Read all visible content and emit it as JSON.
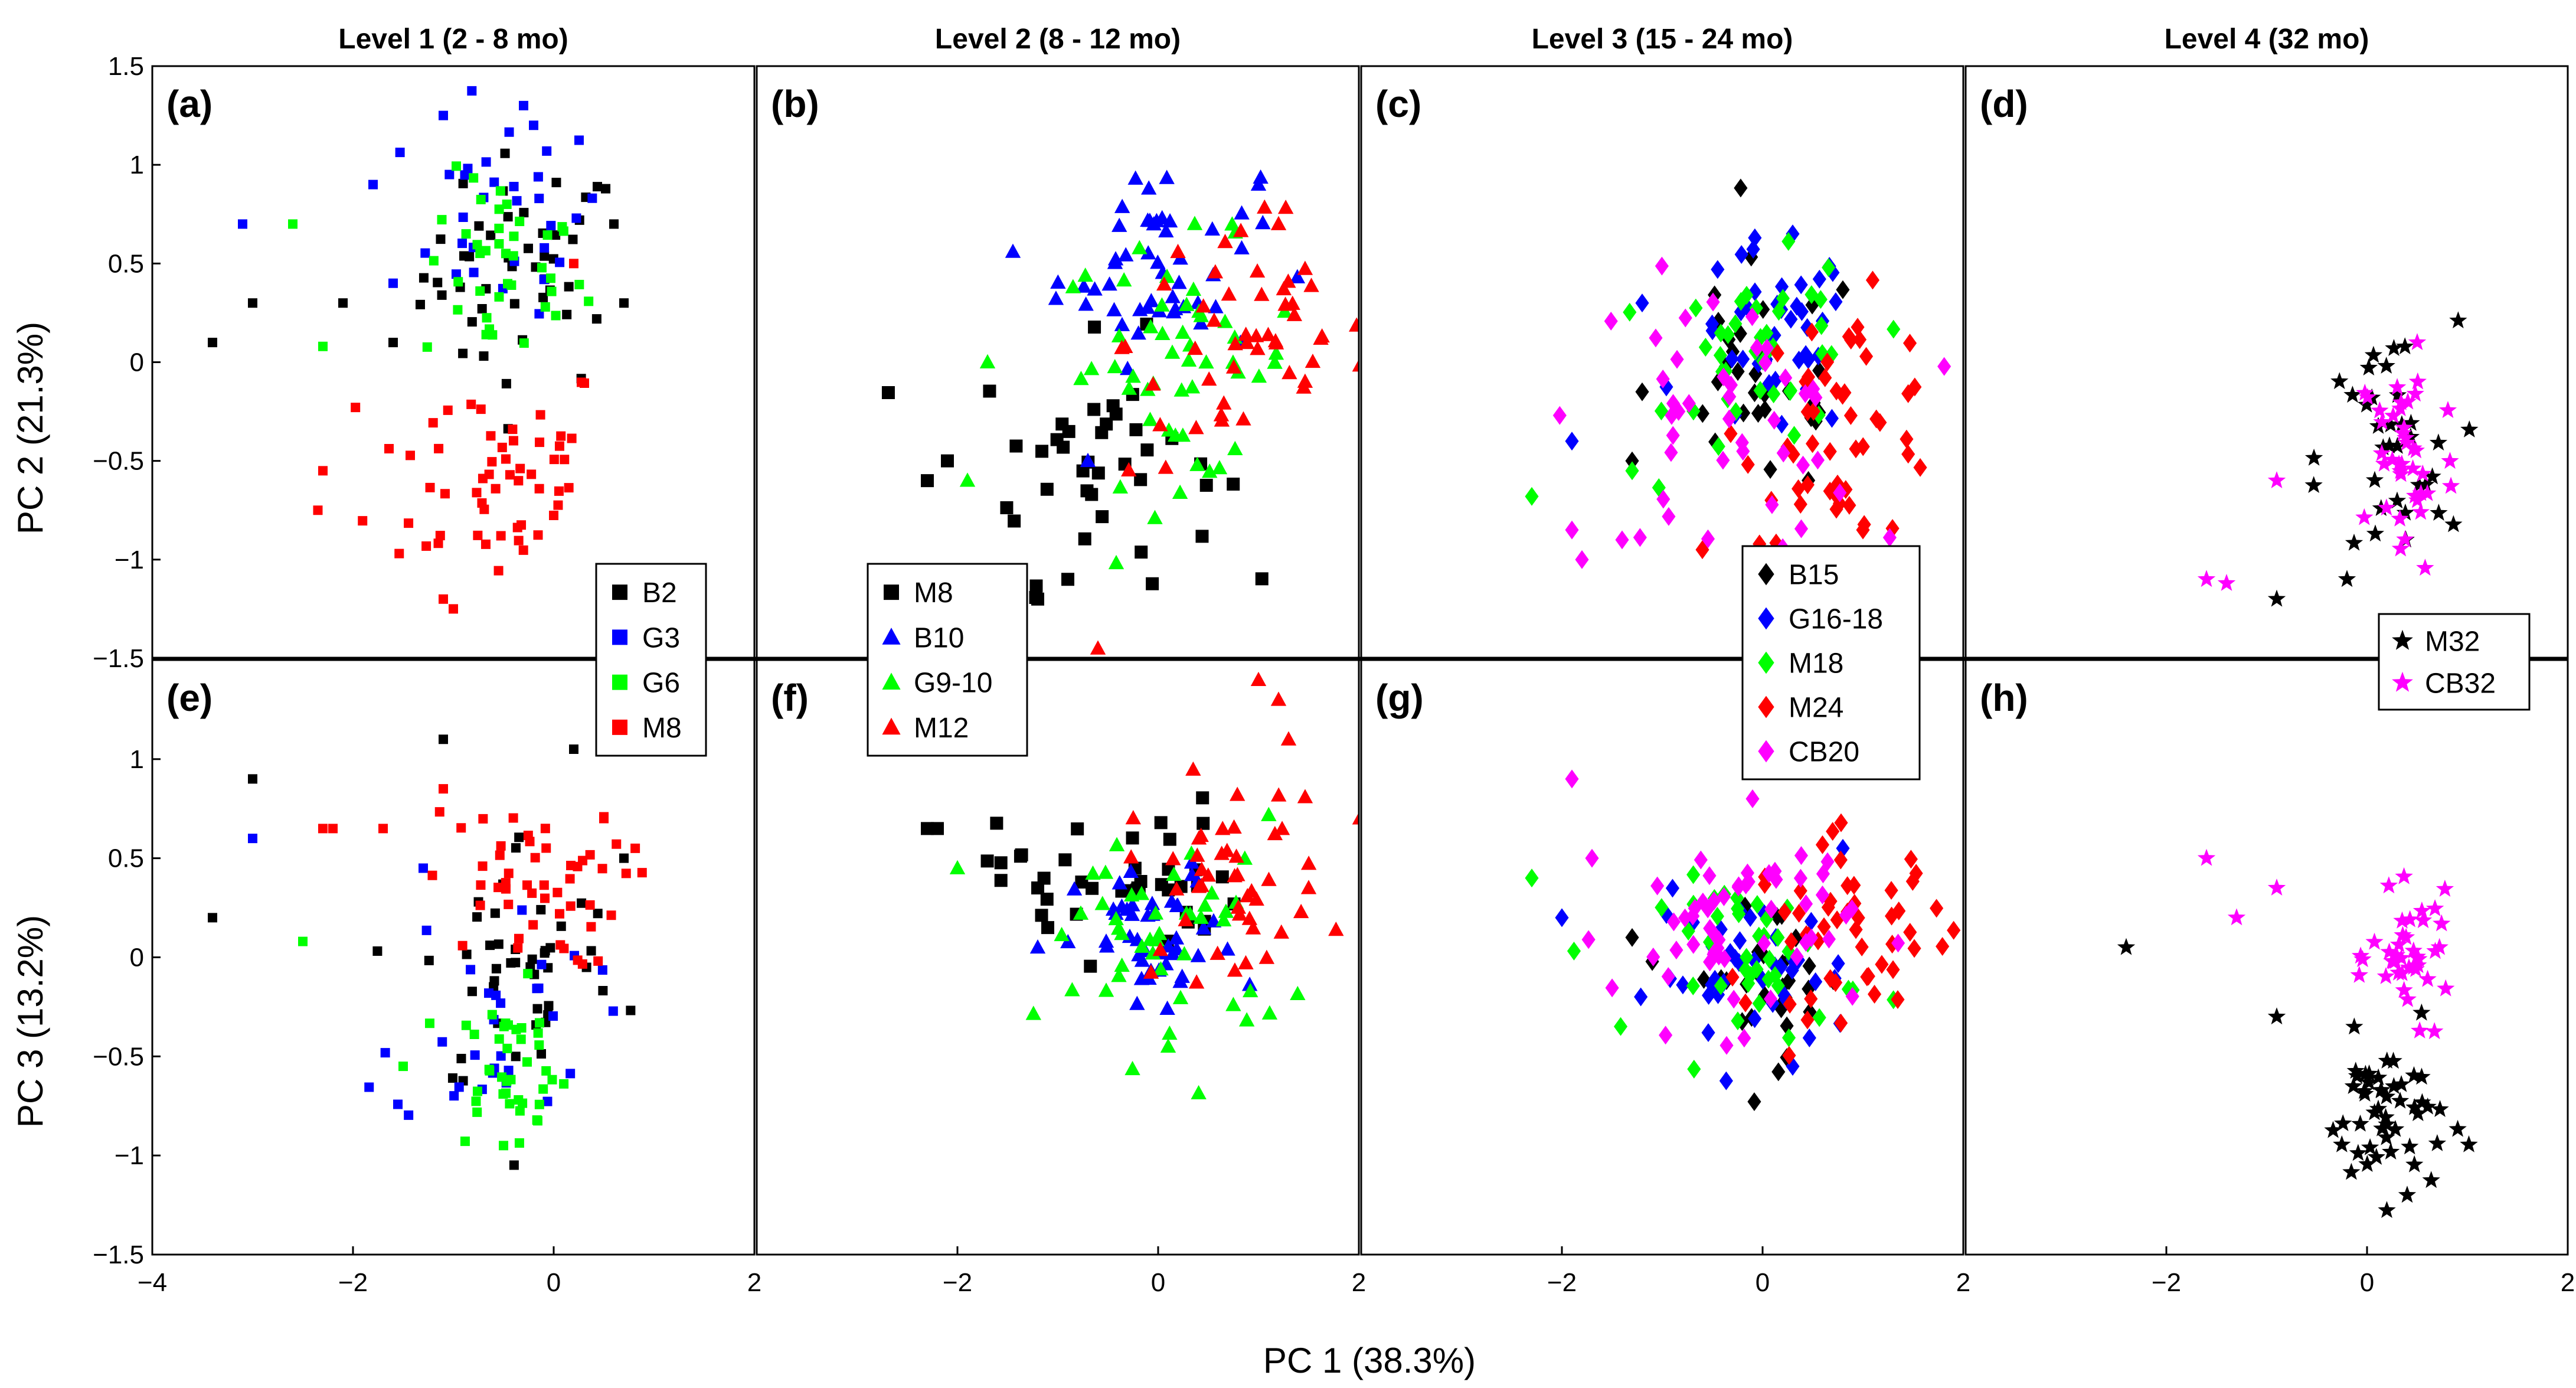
{
  "figure": {
    "xlabel": "PC 1 (38.3%)",
    "ylabel_top": "PC 2 (21.3%)",
    "ylabel_bottom": "PC 3 (13.2%)"
  },
  "chart_data": {
    "type": "scatter",
    "grid": false,
    "xlim": [
      -4,
      2
    ],
    "x_ticks": [
      -4,
      -2,
      0,
      2
    ],
    "rows": [
      {
        "ylabel": "PC 2 (21.3%)",
        "ylim": [
          -1.5,
          1.5
        ],
        "y_ticks": [
          -1.5,
          -1,
          -0.5,
          0,
          0.5,
          1,
          1.5
        ]
      },
      {
        "ylabel": "PC 3 (13.2%)",
        "ylim": [
          -1.5,
          1.5
        ],
        "y_ticks": [
          -1.5,
          -1,
          -0.5,
          0,
          0.5,
          1
        ]
      }
    ],
    "levels": [
      {
        "title": "Level 1 (2 - 8 mo)",
        "marker": "square",
        "legend_position": "bottom-right of top panel",
        "series": [
          {
            "name": "B2",
            "color": "#000000"
          },
          {
            "name": "G3",
            "color": "#0000ff"
          },
          {
            "name": "G6",
            "color": "#00ff00"
          },
          {
            "name": "M8",
            "color": "#ff0000"
          }
        ]
      },
      {
        "title": "Level 2 (8 - 12 mo)",
        "marker": "triangle",
        "legend_position": "bottom-left of top panel",
        "series": [
          {
            "name": "M8",
            "color": "#000000",
            "marker": "square"
          },
          {
            "name": "B10",
            "color": "#0000ff"
          },
          {
            "name": "G9-10",
            "color": "#00ff00"
          },
          {
            "name": "M12",
            "color": "#ff0000"
          }
        ]
      },
      {
        "title": "Level 3 (15 - 24 mo)",
        "marker": "diamond",
        "legend_position": "bottom-right of top panel",
        "series": [
          {
            "name": "B15",
            "color": "#000000"
          },
          {
            "name": "G16-18",
            "color": "#0000ff"
          },
          {
            "name": "M18",
            "color": "#00ff00"
          },
          {
            "name": "M24",
            "color": "#ff0000"
          },
          {
            "name": "CB20",
            "color": "#ff00ff"
          }
        ]
      },
      {
        "title": "Level 4 (32 mo)",
        "marker": "star",
        "legend_position": "bottom-right of top panel",
        "series": [
          {
            "name": "M32",
            "color": "#000000"
          },
          {
            "name": "CB32",
            "color": "#ff00ff"
          }
        ]
      }
    ],
    "panels": [
      {
        "label": "(a)",
        "level": 0,
        "row": 0,
        "groups": [
          {
            "series": 0,
            "cx": -0.3,
            "cy": 0.45,
            "sx": 0.5,
            "sy": 0.3,
            "n": 45,
            "extra": [
              [
                -3.4,
                0.1
              ],
              [
                -3.0,
                0.3
              ],
              [
                -2.1,
                0.3
              ],
              [
                -1.6,
                0.1
              ],
              [
                0.7,
                0.3
              ],
              [
                0.6,
                0.7
              ]
            ]
          },
          {
            "series": 1,
            "cx": -0.5,
            "cy": 0.75,
            "sx": 0.5,
            "sy": 0.25,
            "n": 30,
            "extra": [
              [
                -3.1,
                0.7
              ],
              [
                -2.6,
                0.7
              ],
              [
                -1.8,
                0.9
              ],
              [
                -1.6,
                0.4
              ],
              [
                -0.3,
                1.3
              ],
              [
                -0.2,
                1.2
              ],
              [
                -1.1,
                1.25
              ]
            ]
          },
          {
            "series": 2,
            "cx": -0.5,
            "cy": 0.45,
            "sx": 0.4,
            "sy": 0.25,
            "n": 40,
            "extra": [
              [
                -2.6,
                0.7
              ],
              [
                -2.3,
                0.08
              ]
            ]
          },
          {
            "series": 3,
            "cx": -0.6,
            "cy": -0.55,
            "sx": 0.6,
            "sy": 0.3,
            "n": 55,
            "extra": [
              [
                -2.3,
                -0.55
              ],
              [
                -2.35,
                -0.75
              ],
              [
                -1.1,
                -1.2
              ],
              [
                -1.0,
                -1.25
              ],
              [
                0.2,
                0.5
              ]
            ]
          }
        ]
      },
      {
        "label": "(b)",
        "level": 1,
        "row": 0,
        "groups": [
          {
            "series": 0,
            "cx": -0.6,
            "cy": -0.5,
            "sx": 0.6,
            "sy": 0.3,
            "n": 40,
            "marker": "square",
            "extra": [
              [
                -2.3,
                -0.6
              ],
              [
                -2.1,
                -0.5
              ],
              [
                -1.2,
                -1.2
              ],
              [
                -0.9,
                -1.1
              ]
            ]
          },
          {
            "series": 1,
            "cx": 0.0,
            "cy": 0.5,
            "sx": 0.5,
            "sy": 0.25,
            "n": 50,
            "extra": [
              [
                1.0,
                0.9
              ],
              [
                -0.7,
                -0.5
              ]
            ]
          },
          {
            "series": 2,
            "cx": 0.2,
            "cy": 0.0,
            "sx": 0.6,
            "sy": 0.3,
            "n": 50,
            "extra": [
              [
                -1.7,
                0.0
              ],
              [
                -1.9,
                -0.6
              ]
            ]
          },
          {
            "series": 3,
            "cx": 0.9,
            "cy": 0.1,
            "sx": 0.6,
            "sy": 0.35,
            "n": 50,
            "extra": [
              [
                -0.6,
                -1.45
              ],
              [
                1.2,
                0.7
              ]
            ]
          }
        ]
      },
      {
        "label": "(c)",
        "level": 2,
        "row": 0,
        "groups": [
          {
            "series": 0,
            "cx": 0.0,
            "cy": -0.1,
            "sx": 0.5,
            "sy": 0.3,
            "n": 30,
            "extra": [
              [
                -1.3,
                -0.5
              ],
              [
                -1.2,
                -0.15
              ]
            ]
          },
          {
            "series": 1,
            "cx": 0.1,
            "cy": 0.1,
            "sx": 0.4,
            "sy": 0.25,
            "n": 40,
            "extra": [
              [
                -1.9,
                -0.4
              ],
              [
                -1.2,
                0.3
              ],
              [
                0.3,
                0.65
              ]
            ]
          },
          {
            "series": 2,
            "cx": 0.1,
            "cy": 0.0,
            "sx": 0.5,
            "sy": 0.25,
            "n": 40,
            "extra": [
              [
                -2.3,
                -0.68
              ],
              [
                -1.3,
                -0.55
              ]
            ]
          },
          {
            "series": 3,
            "cx": 0.8,
            "cy": -0.3,
            "sx": 0.5,
            "sy": 0.3,
            "n": 50,
            "extra": [
              [
                -0.6,
                -0.95
              ],
              [
                1.0,
                -0.85
              ]
            ]
          },
          {
            "series": 4,
            "cx": -0.4,
            "cy": -0.3,
            "sx": 0.7,
            "sy": 0.35,
            "n": 45,
            "extra": [
              [
                -1.9,
                -0.85
              ],
              [
                -1.8,
                -1.0
              ],
              [
                -1.4,
                -0.9
              ]
            ]
          }
        ]
      },
      {
        "label": "(d)",
        "level": 3,
        "row": 0,
        "groups": [
          {
            "series": 0,
            "cx": 0.2,
            "cy": -0.5,
            "sx": 0.35,
            "sy": 0.35,
            "n": 35,
            "extra": [
              [
                -0.9,
                -1.2
              ],
              [
                -0.2,
                -1.1
              ]
            ]
          },
          {
            "series": 1,
            "cx": 0.4,
            "cy": -0.5,
            "sx": 0.25,
            "sy": 0.3,
            "n": 40,
            "extra": [
              [
                -1.6,
                -1.1
              ],
              [
                -1.4,
                -1.12
              ],
              [
                -0.9,
                -0.6
              ],
              [
                0.5,
                0.1
              ]
            ]
          }
        ]
      },
      {
        "label": "(e)",
        "level": 0,
        "row": 1,
        "groups": [
          {
            "series": 0,
            "cx": -0.3,
            "cy": -0.05,
            "sx": 0.5,
            "sy": 0.35,
            "n": 45,
            "extra": [
              [
                -3.4,
                0.2
              ],
              [
                -3.0,
                0.9
              ],
              [
                -1.1,
                1.1
              ],
              [
                0.2,
                1.05
              ],
              [
                0.7,
                0.5
              ]
            ]
          },
          {
            "series": 1,
            "cx": -0.6,
            "cy": -0.3,
            "sx": 0.5,
            "sy": 0.3,
            "n": 30,
            "extra": [
              [
                -3.0,
                0.6
              ],
              [
                -1.3,
                0.45
              ]
            ]
          },
          {
            "series": 2,
            "cx": -0.45,
            "cy": -0.55,
            "sx": 0.3,
            "sy": 0.2,
            "n": 40,
            "extra": [
              [
                -2.5,
                0.08
              ],
              [
                -1.5,
                -0.55
              ],
              [
                -0.5,
                -0.95
              ]
            ]
          },
          {
            "series": 3,
            "cx": -0.3,
            "cy": 0.35,
            "sx": 0.5,
            "sy": 0.2,
            "n": 50,
            "extra": [
              [
                -2.3,
                0.65
              ],
              [
                -2.2,
                0.65
              ],
              [
                -1.7,
                0.65
              ],
              [
                -1.1,
                0.85
              ],
              [
                0.5,
                0.7
              ]
            ]
          }
        ]
      },
      {
        "label": "(f)",
        "level": 1,
        "row": 1,
        "groups": [
          {
            "series": 0,
            "cx": -0.4,
            "cy": 0.4,
            "sx": 0.6,
            "sy": 0.2,
            "n": 40,
            "marker": "square",
            "extra": [
              [
                -2.3,
                0.65
              ],
              [
                -2.2,
                0.65
              ],
              [
                -1.2,
                0.35
              ],
              [
                -1.1,
                0.15
              ]
            ]
          },
          {
            "series": 1,
            "cx": 0.0,
            "cy": 0.05,
            "sx": 0.4,
            "sy": 0.2,
            "n": 45,
            "extra": [
              [
                -1.2,
                0.05
              ]
            ]
          },
          {
            "series": 2,
            "cx": 0.1,
            "cy": 0.1,
            "sx": 0.6,
            "sy": 0.3,
            "n": 45,
            "extra": [
              [
                -2.0,
                0.45
              ],
              [
                0.1,
                -0.45
              ]
            ]
          },
          {
            "series": 3,
            "cx": 0.7,
            "cy": 0.4,
            "sx": 0.5,
            "sy": 0.25,
            "n": 45,
            "extra": [
              [
                1.0,
                1.4
              ],
              [
                1.2,
                1.3
              ],
              [
                1.3,
                1.1
              ],
              [
                1.5,
                0.35
              ]
            ]
          }
        ]
      },
      {
        "label": "(g)",
        "level": 2,
        "row": 1,
        "groups": [
          {
            "series": 0,
            "cx": 0.1,
            "cy": -0.1,
            "sx": 0.4,
            "sy": 0.2,
            "n": 30,
            "extra": [
              [
                -1.3,
                0.1
              ]
            ]
          },
          {
            "series": 1,
            "cx": -0.1,
            "cy": -0.1,
            "sx": 0.5,
            "sy": 0.2,
            "n": 40,
            "extra": [
              [
                -2.0,
                0.2
              ],
              [
                0.3,
                -0.55
              ],
              [
                0.8,
                0.55
              ]
            ]
          },
          {
            "series": 2,
            "cx": 0.0,
            "cy": 0.0,
            "sx": 0.5,
            "sy": 0.2,
            "n": 40,
            "extra": [
              [
                -2.3,
                0.4
              ]
            ]
          },
          {
            "series": 3,
            "cx": 0.9,
            "cy": 0.15,
            "sx": 0.5,
            "sy": 0.22,
            "n": 50,
            "extra": [
              [
                -0.3,
                -0.1
              ]
            ]
          },
          {
            "series": 4,
            "cx": -0.3,
            "cy": 0.15,
            "sx": 0.6,
            "sy": 0.25,
            "n": 55,
            "extra": [
              [
                -1.9,
                0.9
              ],
              [
                -1.7,
                0.5
              ],
              [
                -0.1,
                0.8
              ]
            ]
          }
        ]
      },
      {
        "label": "(h)",
        "level": 3,
        "row": 1,
        "groups": [
          {
            "series": 0,
            "cx": 0.2,
            "cy": -0.8,
            "sx": 0.3,
            "sy": 0.2,
            "n": 50,
            "extra": [
              [
                -2.4,
                0.05
              ],
              [
                -0.9,
                -0.3
              ],
              [
                0.4,
                -1.2
              ]
            ]
          },
          {
            "series": 1,
            "cx": 0.45,
            "cy": 0.0,
            "sx": 0.2,
            "sy": 0.15,
            "n": 40,
            "extra": [
              [
                -1.6,
                0.5
              ],
              [
                -1.3,
                0.2
              ],
              [
                -0.9,
                0.35
              ]
            ]
          }
        ]
      }
    ]
  }
}
